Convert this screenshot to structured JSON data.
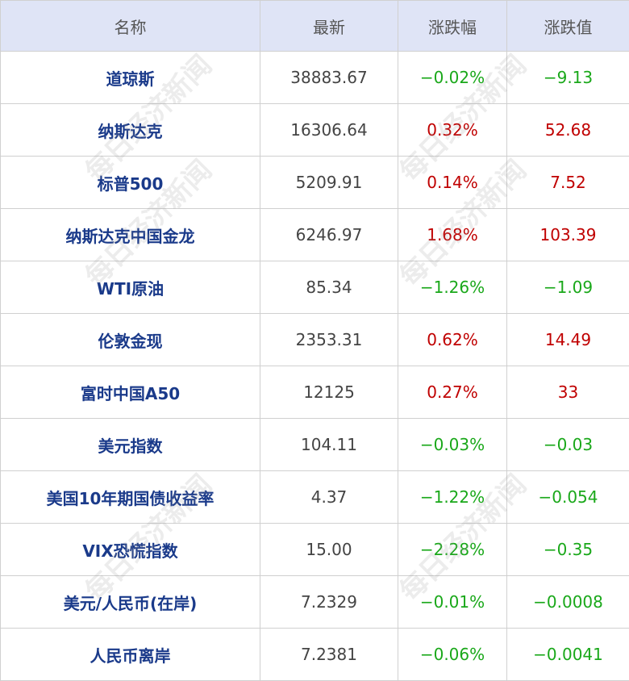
{
  "watermark": "每日经济新闻",
  "table": {
    "header": [
      "名称",
      "最新",
      "涨跌幅",
      "涨跌值"
    ],
    "rows": [
      [
        "道琼斯",
        "38883.67",
        "−0.02%",
        "−9.13"
      ],
      [
        "纳斯达克",
        "16306.64",
        "0.32%",
        "52.68"
      ],
      [
        "标普500",
        "5209.91",
        "0.14%",
        "7.52"
      ],
      [
        "纳斯达克中国金龙",
        "6246.97",
        "1.68%",
        "103.39"
      ],
      [
        "WTI原油",
        "85.34",
        "−1.26%",
        "−1.09"
      ],
      [
        "伦敦金现",
        "2353.31",
        "0.62%",
        "14.49"
      ],
      [
        "富时中国A50",
        "12125",
        "0.27%",
        "33"
      ],
      [
        "美元指数",
        "104.11",
        "−0.03%",
        "−0.03"
      ],
      [
        "美国10年期国债收益率",
        "4.37",
        "−1.22%",
        "−0.054"
      ],
      [
        "VIX恐慌指数",
        "15.00",
        "−2.28%",
        "−0.35"
      ],
      [
        "美元/人民币(在岸)",
        "7.2329",
        "−0.01%",
        "−0.0008"
      ],
      [
        "人民币离岸",
        "7.2381",
        "−0.06%",
        "−0.0041"
      ]
    ]
  }
}
